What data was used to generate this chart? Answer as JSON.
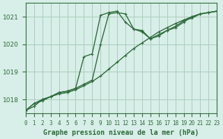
{
  "background_color": "#d8eee8",
  "grid_color": "#aaccbb",
  "line_color": "#2d6b3a",
  "title": "Graphe pression niveau de la mer (hPa)",
  "xlabel_fontsize": 8,
  "ylabel_fontsize": 7,
  "ylim": [
    1017.5,
    1021.5
  ],
  "xlim": [
    0,
    23
  ],
  "yticks": [
    1018,
    1019,
    1020,
    1021
  ],
  "xtick_labels": [
    "0",
    "1",
    "2",
    "3",
    "4",
    "5",
    "6",
    "7",
    "8",
    "9",
    "10",
    "11",
    "12",
    "13",
    "14",
    "15",
    "16",
    "17",
    "18",
    "19",
    "20",
    "21",
    "22",
    "23"
  ],
  "series1_x": [
    0,
    1,
    2,
    3,
    4,
    5,
    6,
    7,
    8,
    9,
    10,
    11,
    12,
    13,
    14,
    15,
    16,
    17,
    18,
    19,
    20,
    21,
    22,
    23
  ],
  "series1_y": [
    1017.6,
    1017.85,
    1017.95,
    1018.1,
    1018.2,
    1018.25,
    1018.35,
    1018.5,
    1018.65,
    1018.85,
    1019.1,
    1019.35,
    1019.6,
    1019.85,
    1020.05,
    1020.25,
    1020.45,
    1020.6,
    1020.75,
    1020.88,
    1021.0,
    1021.1,
    1021.15,
    1021.2
  ],
  "series2_x": [
    0,
    1,
    2,
    3,
    4,
    5,
    6,
    7,
    8,
    9,
    10,
    11,
    12,
    13,
    14,
    15,
    16,
    17,
    18,
    19,
    20,
    21,
    22,
    23
  ],
  "series2_y": [
    1017.6,
    1017.85,
    1018.0,
    1018.1,
    1018.25,
    1018.3,
    1018.4,
    1018.55,
    1018.7,
    1020.0,
    1021.1,
    1021.15,
    1021.1,
    1020.55,
    1020.5,
    1020.2,
    1020.3,
    1020.5,
    1020.65,
    1020.85,
    1020.95,
    1021.1,
    1021.15,
    1021.2
  ],
  "series3_x": [
    0,
    1,
    2,
    3,
    4,
    5,
    6,
    7,
    8,
    9,
    10,
    11,
    12,
    13,
    14,
    15,
    16,
    17,
    18,
    19,
    20,
    21,
    22,
    23
  ],
  "series3_y": [
    1017.6,
    1017.75,
    1018.0,
    1018.1,
    1018.25,
    1018.3,
    1018.4,
    1019.55,
    1019.65,
    1021.05,
    1021.15,
    1021.2,
    1020.8,
    1020.55,
    1020.45,
    1020.2,
    1020.35,
    1020.5,
    1020.6,
    1020.8,
    1021.0,
    1021.1,
    1021.15,
    1021.2
  ]
}
